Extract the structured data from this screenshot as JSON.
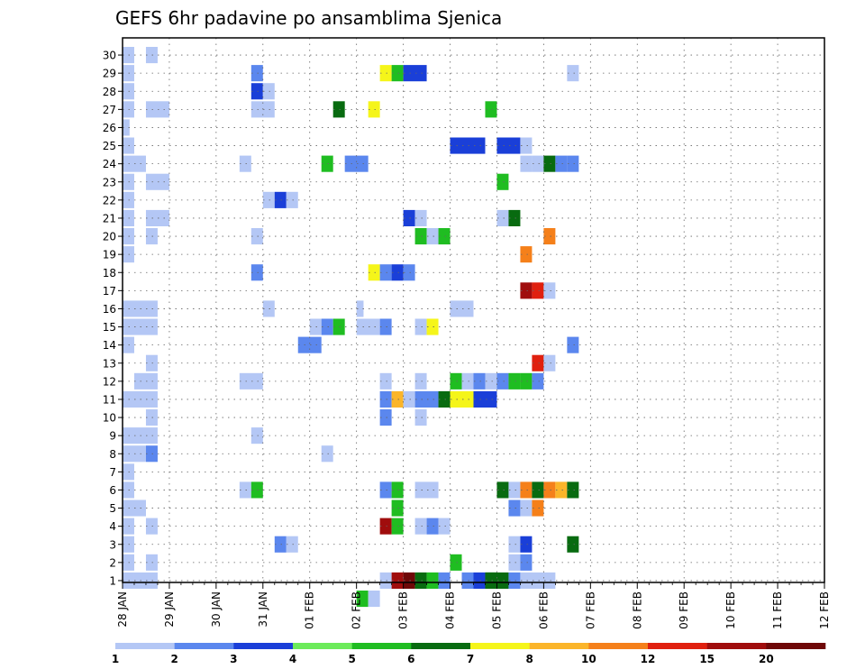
{
  "chart_data": {
    "type": "heatmap",
    "title": "GEFS 6hr padavine po ansamblima Sjenica",
    "xlabel": "",
    "ylabel": "",
    "x_range": [
      "28 JAN 00Z",
      "12 FEB 00Z"
    ],
    "x_step_hours": 6,
    "x_tick_labels": [
      "28 JAN",
      "29 JAN",
      "30 JAN",
      "31 JAN",
      "01 FEB",
      "02 FEB",
      "03 FEB",
      "04 FEB",
      "05 FEB",
      "06 FEB",
      "07 FEB",
      "08 FEB",
      "09 FEB",
      "10 FEB",
      "11 FEB",
      "12 FEB"
    ],
    "y_tick_labels": [
      "1",
      "2",
      "3",
      "4",
      "5",
      "6",
      "7",
      "8",
      "9",
      "10",
      "11",
      "12",
      "13",
      "14",
      "15",
      "16",
      "17",
      "18",
      "19",
      "20",
      "21",
      "22",
      "23",
      "24",
      "25",
      "26",
      "27",
      "28",
      "29",
      "30"
    ],
    "grid": true,
    "colorbar": {
      "placement": "bottom",
      "levels": [
        "1",
        "2",
        "3",
        "4",
        "5",
        "6",
        "7",
        "8",
        "10",
        "12",
        "15",
        "20"
      ],
      "colors": [
        "#b4c7f5",
        "#5b87ee",
        "#1a3fd8",
        "#6ceb5a",
        "#1fbd21",
        "#086b10",
        "#f5f51a",
        "#fbb52a",
        "#f5801a",
        "#e0200f",
        "#a00d0d",
        "#6e0808"
      ]
    },
    "cells": [
      [
        30,
        0,
        1,
        1
      ],
      [
        30,
        2,
        1,
        1
      ],
      [
        29,
        0,
        1,
        1
      ],
      [
        28,
        0,
        1,
        1
      ],
      [
        27,
        0,
        1,
        1
      ],
      [
        27,
        2,
        2,
        1
      ],
      [
        26,
        0,
        0,
        1
      ],
      [
        25,
        0,
        1,
        1
      ],
      [
        24,
        0,
        2,
        1
      ],
      [
        23,
        0,
        1,
        1
      ],
      [
        23,
        2,
        2,
        1
      ],
      [
        22,
        0,
        1,
        1
      ],
      [
        21,
        0,
        1,
        1
      ],
      [
        21,
        2,
        2,
        1
      ],
      [
        20,
        0,
        1,
        1
      ],
      [
        20,
        2,
        1,
        1
      ],
      [
        19,
        0,
        1,
        1
      ],
      [
        16,
        0,
        3,
        1
      ],
      [
        15,
        0,
        3,
        1
      ],
      [
        14,
        0,
        1,
        1
      ],
      [
        13,
        2,
        1,
        1
      ],
      [
        12,
        1,
        2,
        1
      ],
      [
        11,
        0,
        3,
        1
      ],
      [
        10,
        2,
        1,
        1
      ],
      [
        9,
        0,
        3,
        1
      ],
      [
        8,
        0,
        2,
        1
      ],
      [
        8,
        2,
        1,
        2
      ],
      [
        7,
        0,
        1,
        1
      ],
      [
        6,
        0,
        1,
        1
      ],
      [
        5,
        0,
        2,
        1
      ],
      [
        4,
        0,
        1,
        1
      ],
      [
        4,
        2,
        1,
        1
      ],
      [
        3,
        0,
        1,
        1
      ],
      [
        2,
        0,
        1,
        1
      ],
      [
        2,
        2,
        1,
        1
      ],
      [
        1,
        0,
        1,
        1
      ],
      [
        1,
        1,
        2,
        1
      ],
      [
        29,
        11,
        1,
        2
      ],
      [
        28,
        11,
        1,
        3
      ],
      [
        28,
        12,
        1,
        1
      ],
      [
        27,
        11,
        2,
        1
      ],
      [
        24,
        10,
        1,
        1
      ],
      [
        22,
        12,
        1,
        1
      ],
      [
        22,
        13,
        1,
        3
      ],
      [
        22,
        14,
        1,
        1
      ],
      [
        20,
        11,
        1,
        1
      ],
      [
        18,
        11,
        1,
        2
      ],
      [
        16,
        12,
        1,
        1
      ],
      [
        12,
        10,
        2,
        1
      ],
      [
        9,
        11,
        1,
        1
      ],
      [
        6,
        10,
        1,
        1
      ],
      [
        6,
        11,
        1,
        5
      ],
      [
        3,
        13,
        1,
        2
      ],
      [
        3,
        14,
        1,
        1
      ],
      [
        15,
        16,
        1,
        1
      ],
      [
        14,
        15,
        2,
        2
      ],
      [
        24,
        17,
        1,
        5
      ],
      [
        27,
        18,
        1,
        6
      ],
      [
        8,
        17,
        1,
        1
      ],
      [
        15,
        17,
        1,
        2
      ],
      [
        15,
        18,
        1,
        5
      ],
      [
        29,
        22,
        1,
        7
      ],
      [
        29,
        23,
        1,
        5
      ],
      [
        29,
        24,
        2,
        3
      ],
      [
        27,
        21,
        1,
        7
      ],
      [
        24,
        19,
        2,
        2
      ],
      [
        18,
        21,
        1,
        7
      ],
      [
        18,
        22,
        1,
        2
      ],
      [
        18,
        23,
        1,
        3
      ],
      [
        18,
        24,
        1,
        2
      ],
      [
        15,
        20,
        2,
        1
      ],
      [
        15,
        22,
        1,
        2
      ],
      [
        0,
        20,
        1,
        5
      ],
      [
        0,
        21,
        1,
        1
      ],
      [
        16,
        20,
        0,
        1
      ],
      [
        12,
        22,
        1,
        1
      ],
      [
        11,
        22,
        1,
        2
      ],
      [
        11,
        23,
        1,
        8
      ],
      [
        11,
        24,
        1,
        1
      ],
      [
        10,
        22,
        1,
        2
      ],
      [
        6,
        22,
        1,
        2
      ],
      [
        6,
        23,
        1,
        5
      ],
      [
        5,
        23,
        1,
        5
      ],
      [
        4,
        22,
        1,
        11
      ],
      [
        4,
        23,
        1,
        5
      ],
      [
        1,
        22,
        1,
        1
      ],
      [
        1,
        23,
        1,
        11
      ],
      [
        1,
        24,
        1,
        13
      ],
      [
        1,
        25,
        1,
        6
      ],
      [
        1,
        26,
        1,
        5
      ],
      [
        21,
        24,
        1,
        3
      ],
      [
        21,
        25,
        1,
        1
      ],
      [
        20,
        25,
        1,
        5
      ],
      [
        20,
        26,
        1,
        1
      ],
      [
        15,
        25,
        1,
        1
      ],
      [
        15,
        26,
        1,
        7
      ],
      [
        12,
        25,
        1,
        1
      ],
      [
        11,
        25,
        2,
        2
      ],
      [
        10,
        25,
        1,
        1
      ],
      [
        6,
        25,
        2,
        1
      ],
      [
        4,
        25,
        1,
        1
      ],
      [
        4,
        26,
        1,
        2
      ],
      [
        4,
        27,
        1,
        1
      ],
      [
        1,
        27,
        1,
        2
      ],
      [
        25,
        28,
        3,
        3
      ],
      [
        16,
        28,
        2,
        1
      ],
      [
        12,
        28,
        1,
        5
      ],
      [
        12,
        29,
        1,
        1
      ],
      [
        11,
        27,
        1,
        6
      ],
      [
        11,
        28,
        2,
        7
      ],
      [
        11,
        30,
        2,
        3
      ],
      [
        20,
        27,
        1,
        5
      ],
      [
        2,
        28,
        1,
        5
      ],
      [
        1,
        29,
        1,
        2
      ],
      [
        1,
        30,
        1,
        3
      ],
      [
        1,
        31,
        1,
        6
      ],
      [
        1,
        32,
        1,
        6
      ],
      [
        1,
        33,
        1,
        2
      ],
      [
        1,
        34,
        3,
        1
      ],
      [
        12,
        30,
        1,
        2
      ],
      [
        12,
        31,
        1,
        1
      ],
      [
        12,
        32,
        1,
        2
      ],
      [
        12,
        33,
        1,
        5
      ],
      [
        12,
        34,
        1,
        5
      ],
      [
        12,
        35,
        1,
        2
      ],
      [
        27,
        31,
        1,
        5
      ],
      [
        25,
        32,
        2,
        3
      ],
      [
        25,
        34,
        1,
        1
      ],
      [
        24,
        34,
        1,
        1
      ],
      [
        24,
        35,
        1,
        1
      ],
      [
        24,
        36,
        1,
        6
      ],
      [
        24,
        37,
        1,
        2
      ],
      [
        23,
        32,
        1,
        5
      ],
      [
        21,
        32,
        1,
        1
      ],
      [
        21,
        33,
        1,
        6
      ],
      [
        20,
        36,
        1,
        9
      ],
      [
        19,
        34,
        1,
        9
      ],
      [
        17,
        34,
        1,
        11
      ],
      [
        17,
        35,
        1,
        10
      ],
      [
        17,
        36,
        1,
        1
      ],
      [
        13,
        35,
        1,
        10
      ],
      [
        13,
        36,
        1,
        1
      ],
      [
        6,
        32,
        1,
        6
      ],
      [
        6,
        33,
        1,
        1
      ],
      [
        6,
        34,
        1,
        9
      ],
      [
        6,
        35,
        1,
        6
      ],
      [
        6,
        36,
        1,
        9
      ],
      [
        6,
        37,
        1,
        8
      ],
      [
        6,
        38,
        1,
        6
      ],
      [
        5,
        33,
        1,
        2
      ],
      [
        5,
        34,
        1,
        1
      ],
      [
        5,
        35,
        1,
        9
      ],
      [
        3,
        33,
        1,
        1
      ],
      [
        3,
        34,
        1,
        3
      ],
      [
        3,
        38,
        1,
        6
      ],
      [
        2,
        33,
        1,
        1
      ],
      [
        2,
        34,
        1,
        2
      ],
      [
        1,
        31,
        1,
        6
      ],
      [
        29,
        38,
        1,
        1
      ],
      [
        14,
        38,
        1,
        2
      ],
      [
        24,
        38,
        1,
        2
      ]
    ]
  }
}
